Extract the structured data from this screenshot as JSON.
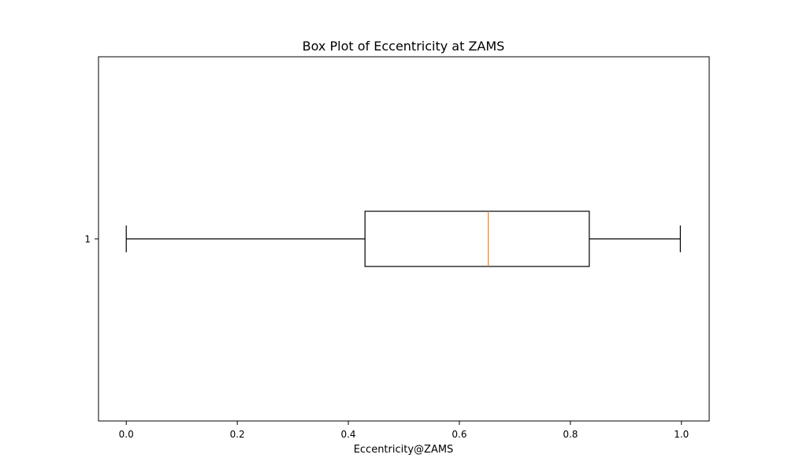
{
  "chart_data": {
    "type": "box",
    "orientation": "horizontal",
    "title": "Box Plot of Eccentricity at ZAMS",
    "xlabel": "Eccentricity@ZAMS",
    "ylabel": "",
    "xlim": [
      -0.05,
      1.05
    ],
    "xticks": [
      0.0,
      0.2,
      0.4,
      0.6,
      0.8,
      1.0
    ],
    "xtick_labels": [
      "0.0",
      "0.2",
      "0.4",
      "0.6",
      "0.8",
      "1.0"
    ],
    "categories": [
      "1"
    ],
    "boxes": [
      {
        "label": "1",
        "whisker_low": 0.0,
        "q1": 0.43,
        "median": 0.652,
        "q3": 0.834,
        "whisker_high": 0.998
      }
    ],
    "grid": false,
    "colors": {
      "box": "#000000",
      "median": "#ff7f0e"
    }
  }
}
